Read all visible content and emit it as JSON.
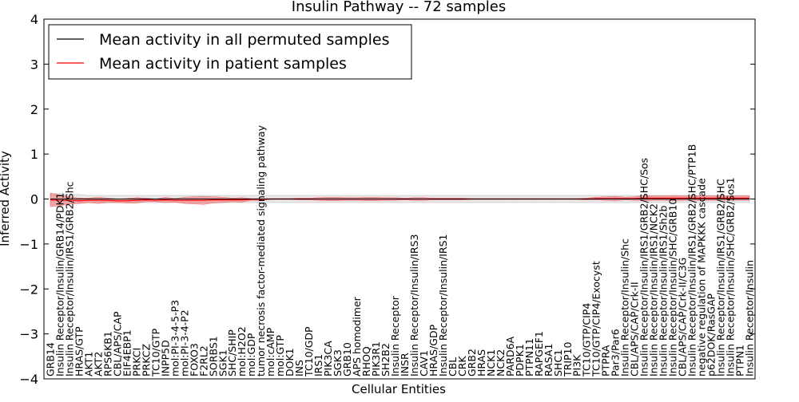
{
  "chart_data": {
    "type": "line",
    "title": "Insulin Pathway -- 72 samples",
    "xlabel": "Cellular Entities",
    "ylabel": "Inferred Activity",
    "ylim": [
      -4,
      4
    ],
    "yticks": [
      4,
      3,
      2,
      1,
      0,
      -1,
      -2,
      -3,
      -4
    ],
    "legend_position": "upper-left",
    "colors": {
      "permuted_line": "#000000",
      "permuted_band": "#d3d3d3",
      "patient_line": "#ff0000",
      "patient_band": "#f08080"
    },
    "categories": [
      "GRB14",
      "Insulin Receptor/Insulin/GRB14/PDK1",
      "Insulin Receptor/Insulin/IRS1/GRB2/Shc",
      "HRAS/GTP",
      "AKT1",
      "AKT2",
      "RPS6KB1",
      "CBL/APS/CAP",
      "EIF4EBP1",
      "PRKCI",
      "PRKCZ",
      "TC10/GTP",
      "INPP5D",
      "mol:PI-3-4-5-P3",
      "mol:PI-3-4-P2",
      "FOXO3",
      "F2RL2",
      "SORBS1",
      "SGK1",
      "SHC/SHIP",
      "mol:H2O2",
      "mol:GDP",
      "tumor necrosis factor-mediated signaling pathway",
      "mol:cAMP",
      "mol:GTP",
      "DOK1",
      "INS",
      "TC10/GDP",
      "IRS1",
      "PIK3CA",
      "SGK3",
      "GRB10",
      "APS homodimer",
      "RHOQ",
      "PIK3R1",
      "SH2B2",
      "Insulin Receptor",
      "INSR",
      "Insulin Receptor/Insulin/IRS3",
      "CAV1",
      "HRAS/GDP",
      "Insulin Receptor/Insulin/IRS1",
      "CBL",
      "CRK",
      "GRB2",
      "HRAS",
      "NCK1",
      "NCK2",
      "PARD6A",
      "PDPK1",
      "PTPN11",
      "RAPGEF1",
      "RASA1",
      "SHC1",
      "TRIP10",
      "PI3K",
      "TC10/GTP/CIP4",
      "TC10/GTP/CIP4/Exocyst",
      "PTPRA",
      "Par3/Par6",
      "Insulin Receptor/Insulin/Shc",
      "CBL/APS/CAP/Crk-II",
      "Insulin Receptor/Insulin/IRS1/GRB2/SHC/Sos",
      "Insulin Receptor/Insulin/IRS1/NCK2",
      "Insulin Receptor/Insulin/IRS1/Sh2b",
      "Insulin Receptor/Insulin/SHC/GRB10",
      "CBL/APS/CAP/Crk-II/C3G",
      "Insulin Receptor/Insulin/IRS1/GRB2/SHC/PTP1B",
      "negative regulation of MAPKKK cascade",
      "p62DOK/RasGAP",
      "Insulin Receptor/Insulin/IRS1/GRB2/SHC",
      "Insulin Receptor/Insulin/SHC/GRB2/Sos1",
      "PTPN1",
      "Insulin Receptor/Insulin"
    ],
    "series": [
      {
        "name": "Mean activity in all permuted samples",
        "values": [
          0,
          0,
          0,
          0,
          0,
          0,
          0,
          0,
          0,
          0,
          0,
          0,
          0,
          0,
          0,
          0,
          0,
          0,
          0,
          0,
          0,
          0,
          0,
          0,
          0,
          0,
          0,
          0,
          0,
          0,
          0,
          0,
          0,
          0,
          0,
          0,
          0,
          0,
          0,
          0,
          0,
          0,
          0,
          0,
          0,
          0,
          0,
          0,
          0,
          0,
          0,
          0,
          0,
          0,
          0,
          0,
          0,
          0,
          0,
          0,
          0,
          0,
          0,
          0,
          0,
          0,
          0,
          0,
          0,
          0,
          0,
          0,
          0,
          0
        ],
        "band": [
          0.12,
          0.12,
          0.1,
          0.1,
          0.08,
          0.08,
          0.08,
          0.08,
          0.08,
          0.08,
          0.08,
          0.08,
          0.08,
          0.08,
          0.08,
          0.08,
          0.08,
          0.08,
          0.08,
          0.08,
          0.08,
          0.08,
          0.08,
          0.08,
          0.08,
          0.08,
          0.08,
          0.08,
          0.08,
          0.08,
          0.08,
          0.08,
          0.08,
          0.08,
          0.08,
          0.08,
          0.08,
          0.08,
          0.08,
          0.08,
          0.08,
          0.08,
          0.08,
          0.08,
          0.08,
          0.08,
          0.08,
          0.08,
          0.08,
          0.08,
          0.08,
          0.08,
          0.08,
          0.08,
          0.08,
          0.08,
          0.08,
          0.08,
          0.08,
          0.08,
          0.08,
          0.08,
          0.08,
          0.08,
          0.08,
          0.08,
          0.08,
          0.08,
          0.08,
          0.08,
          0.08,
          0.08,
          0.08,
          0.08
        ]
      },
      {
        "name": "Mean activity in patient samples",
        "values": [
          -0.02,
          -0.03,
          -0.03,
          -0.04,
          -0.03,
          -0.03,
          -0.03,
          -0.04,
          -0.04,
          -0.03,
          -0.02,
          -0.03,
          -0.02,
          -0.03,
          -0.03,
          -0.03,
          -0.03,
          -0.02,
          -0.02,
          -0.02,
          -0.02,
          -0.01,
          -0.01,
          0,
          0,
          0,
          0,
          0,
          0,
          0,
          0,
          0,
          0,
          0,
          0,
          0,
          0,
          0,
          0,
          0,
          0,
          0,
          0,
          0,
          0,
          0,
          0,
          0,
          0,
          0,
          0,
          0,
          0,
          0,
          0,
          0,
          0,
          0.01,
          0.01,
          0.01,
          0.01,
          0.01,
          0.02,
          0.02,
          0.02,
          0.02,
          0.02,
          0.02,
          0.02,
          0.02,
          0.02,
          0.02,
          0.02,
          0.02
        ],
        "band": [
          0.15,
          0.12,
          0.08,
          0.06,
          0.05,
          0.07,
          0.05,
          0.04,
          0.05,
          0.06,
          0.04,
          0.03,
          0.06,
          0.04,
          0.07,
          0.08,
          0.09,
          0.07,
          0.06,
          0.04,
          0.05,
          0.02,
          0.02,
          0.01,
          0.01,
          0.01,
          0.02,
          0.02,
          0.03,
          0.04,
          0.04,
          0.03,
          0.03,
          0.04,
          0.04,
          0.03,
          0.03,
          0.02,
          0.03,
          0.03,
          0.02,
          0.02,
          0.02,
          0.02,
          0.01,
          0.01,
          0.01,
          0.01,
          0.01,
          0.01,
          0.01,
          0.01,
          0.01,
          0.01,
          0.01,
          0.01,
          0.02,
          0.03,
          0.04,
          0.05,
          0.03,
          0.04,
          0.06,
          0.05,
          0.05,
          0.06,
          0.05,
          0.05,
          0.05,
          0.05,
          0.05,
          0.05,
          0.05,
          0.05
        ]
      }
    ]
  }
}
